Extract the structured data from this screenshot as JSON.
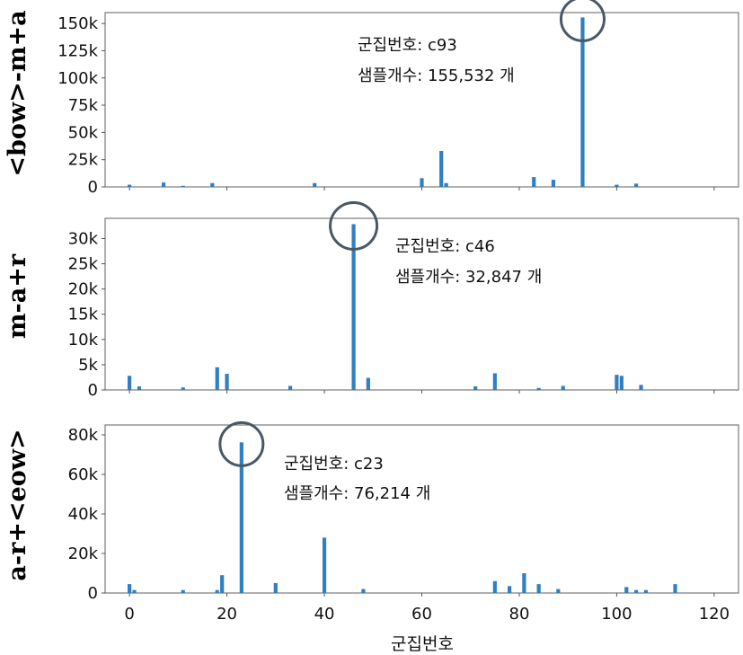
{
  "chart_data": [
    {
      "type": "bar",
      "ylabel": "<bow>-m+a",
      "ylim": [
        0,
        160000
      ],
      "yticks": [
        0,
        25000,
        50000,
        75000,
        100000,
        125000,
        150000
      ],
      "ytick_labels": [
        "0",
        "25k",
        "50k",
        "75k",
        "100k",
        "125k",
        "150k"
      ],
      "annotation": [
        "군집번호: c93",
        "샘플개수: 155,532 개"
      ],
      "highlight_x": 93,
      "highlight_value": 155532,
      "colors": {
        "bar": "#2f7fc1",
        "circle": "#4a5866"
      },
      "x": [
        0,
        7,
        11,
        17,
        38,
        60,
        64,
        65,
        83,
        87,
        93,
        100,
        104
      ],
      "values": [
        2000,
        4000,
        1000,
        3500,
        3500,
        8000,
        33000,
        3500,
        9000,
        6500,
        155532,
        2000,
        3000
      ]
    },
    {
      "type": "bar",
      "ylabel": "m-a+r",
      "ylim": [
        0,
        34000
      ],
      "yticks": [
        0,
        5000,
        10000,
        15000,
        20000,
        25000,
        30000
      ],
      "ytick_labels": [
        "0",
        "5k",
        "10k",
        "15k",
        "20k",
        "25k",
        "30k"
      ],
      "annotation": [
        "군집번호: c46",
        "샘플개수: 32,847 개"
      ],
      "highlight_x": 46,
      "highlight_value": 32847,
      "colors": {
        "bar": "#2f7fc1",
        "circle": "#4a5866"
      },
      "x": [
        0,
        2,
        11,
        18,
        20,
        33,
        46,
        49,
        71,
        75,
        84,
        89,
        100,
        101,
        105
      ],
      "values": [
        2800,
        700,
        500,
        4500,
        3200,
        800,
        32847,
        2400,
        700,
        3300,
        400,
        800,
        3000,
        2800,
        1000
      ]
    },
    {
      "type": "bar",
      "ylabel": "a-r+<eow>",
      "ylim": [
        0,
        85000
      ],
      "yticks": [
        0,
        20000,
        40000,
        60000,
        80000
      ],
      "ytick_labels": [
        "0",
        "20k",
        "40k",
        "60k",
        "80k"
      ],
      "annotation": [
        "군집번호: c23",
        "샘플개수: 76,214 개"
      ],
      "highlight_x": 23,
      "highlight_value": 76214,
      "colors": {
        "bar": "#2f7fc1",
        "circle": "#4a5866"
      },
      "x": [
        0,
        1,
        11,
        18,
        19,
        23,
        30,
        40,
        48,
        75,
        78,
        81,
        84,
        88,
        102,
        104,
        106,
        112
      ],
      "values": [
        4500,
        1500,
        1500,
        1500,
        9000,
        76214,
        5000,
        28000,
        2000,
        6000,
        3500,
        10000,
        4500,
        2000,
        3000,
        1500,
        1500,
        4500
      ]
    }
  ],
  "x_axis": {
    "xlabel": "군집번호",
    "xlim": [
      -5,
      125
    ],
    "xticks": [
      0,
      20,
      40,
      60,
      80,
      100,
      120
    ],
    "xtick_labels": [
      "0",
      "20",
      "40",
      "60",
      "80",
      "100",
      "120"
    ]
  }
}
